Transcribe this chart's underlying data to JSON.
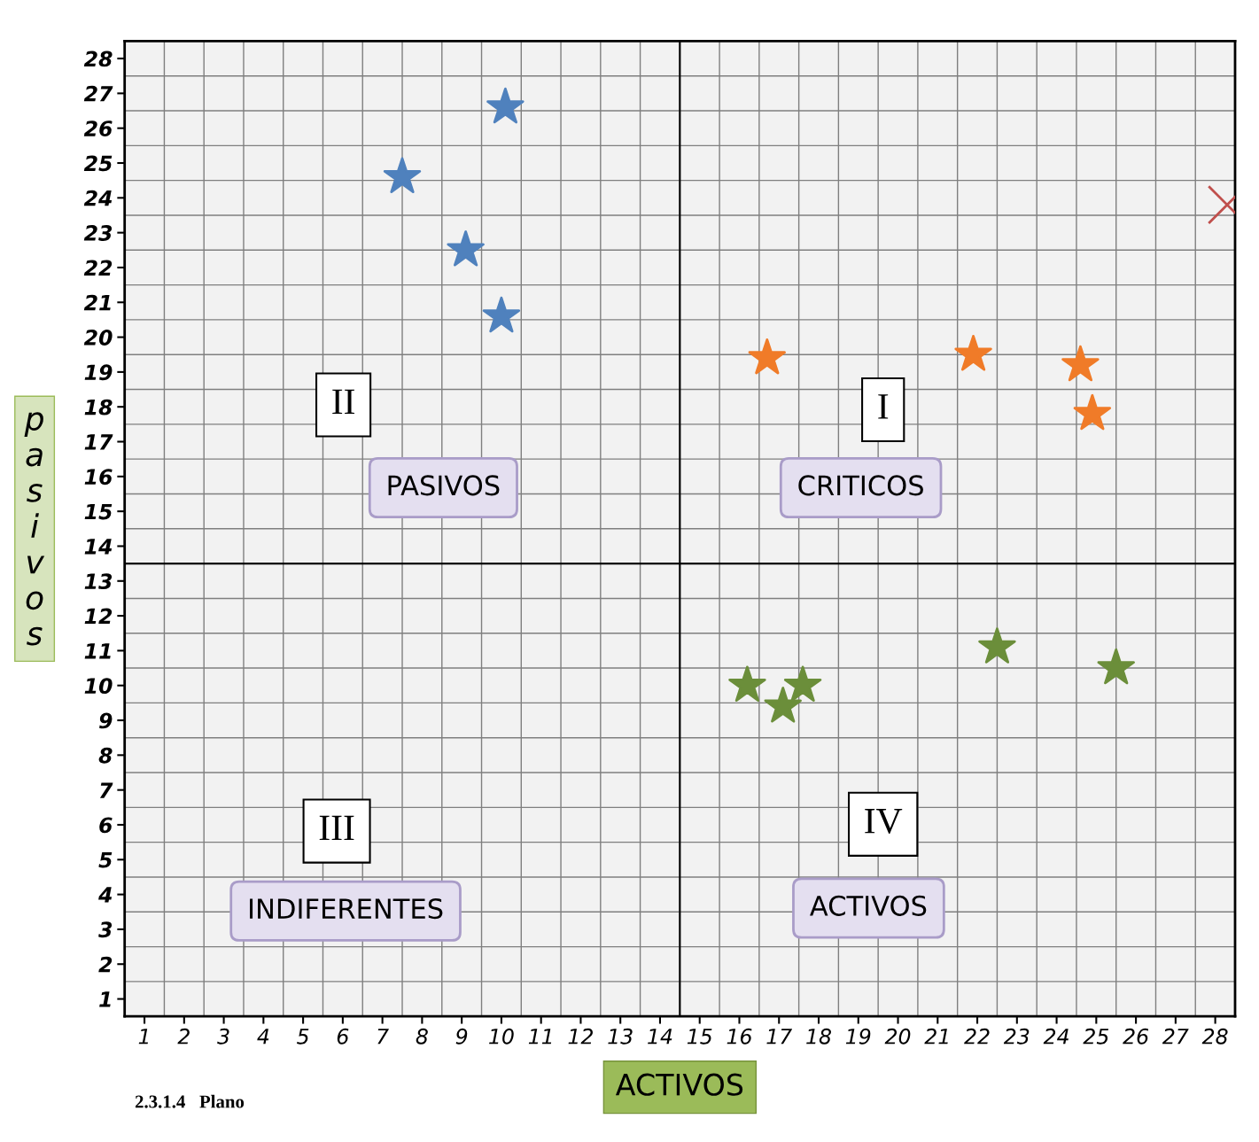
{
  "chart_data": {
    "type": "scatter",
    "xlabel": "ACTIVOS",
    "ylabel": "pasivos",
    "xlim": [
      0.5,
      28.5
    ],
    "ylim": [
      0.5,
      28.5
    ],
    "xticks": [
      1,
      2,
      3,
      4,
      5,
      6,
      7,
      8,
      9,
      10,
      11,
      12,
      13,
      14,
      15,
      16,
      17,
      18,
      19,
      20,
      21,
      22,
      23,
      24,
      25,
      26,
      27,
      28
    ],
    "yticks": [
      1,
      2,
      3,
      4,
      5,
      6,
      7,
      8,
      9,
      10,
      11,
      12,
      13,
      14,
      15,
      16,
      17,
      18,
      19,
      20,
      21,
      22,
      23,
      24,
      25,
      26,
      27,
      28
    ],
    "grid": true,
    "marker": "star",
    "series": [
      {
        "color": "#4f81bd",
        "x": [
          10.1,
          7.5,
          9.1,
          10.0
        ],
        "values": [
          26.6,
          24.6,
          22.5,
          20.6
        ]
      },
      {
        "color": "#f07b28",
        "x": [
          16.7,
          21.9,
          24.6,
          24.9
        ],
        "values": [
          19.4,
          19.5,
          19.2,
          17.8
        ]
      },
      {
        "color": "#c0504d",
        "marker": "cross",
        "x": [
          28.3
        ],
        "values": [
          23.8
        ]
      },
      {
        "color": "#6b8e3a",
        "x": [
          16.2,
          17.1,
          17.6,
          22.5,
          25.5
        ],
        "values": [
          10.0,
          9.4,
          10.0,
          11.1,
          10.5
        ]
      }
    ],
    "ref_lines": [
      {
        "axis": "x",
        "value": 14.5,
        "color": "#000000"
      },
      {
        "axis": "y",
        "value": 13.5,
        "color": "#000000"
      }
    ],
    "annotations": [
      "II",
      "PASIVOS",
      "I",
      "CRITICOS",
      "III",
      "INDIFERENTES",
      "IV",
      "ACTIVOS",
      "2.3.1.4   Plano"
    ]
  }
}
